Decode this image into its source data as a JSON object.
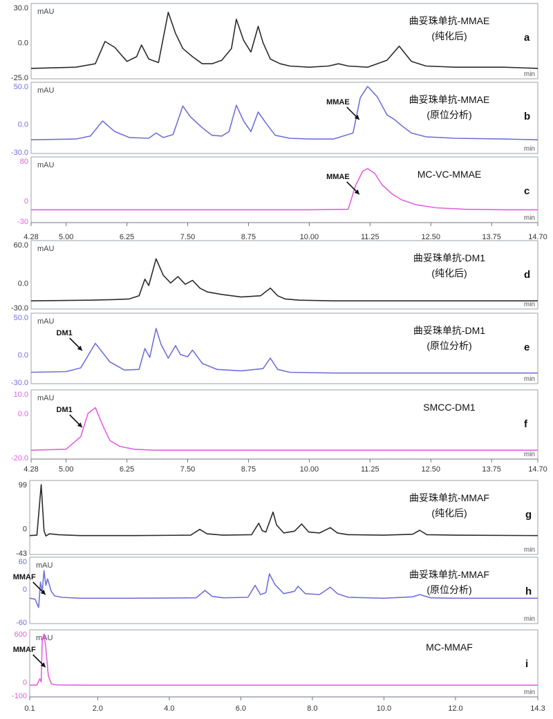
{
  "chart_data": [
    {
      "panel_group": "MMAE/MC-VC-MMAE",
      "x_axis": {
        "type": "linear",
        "range": [
          4.28,
          14.7
        ],
        "ticks": [
          4.28,
          5.0,
          6.25,
          7.5,
          8.75,
          10.0,
          11.25,
          12.5,
          13.75,
          14.7
        ],
        "tick_labels": [
          "4.28",
          "5.00",
          "6.25",
          "7.50",
          "8.75",
          "10.00",
          "11.25",
          "12.50",
          "13.75",
          "14.70"
        ]
      },
      "panels": [
        {
          "id": "a",
          "type": "line",
          "y_unit": "mAU",
          "x_unit": "min",
          "ylim": [
            -25.0,
            30.0
          ],
          "yticks": [
            "30.0",
            "0.0",
            "-25.0"
          ],
          "color": "#2a2a2a",
          "title_lines": [
            "曲妥珠单抗-MMAE",
            "(纯化后)"
          ],
          "letter": "a",
          "x": [
            4.28,
            5.2,
            5.6,
            5.8,
            6.0,
            6.25,
            6.45,
            6.55,
            6.7,
            6.9,
            7.1,
            7.25,
            7.4,
            7.6,
            7.8,
            8.0,
            8.2,
            8.4,
            8.5,
            8.65,
            8.8,
            8.95,
            9.05,
            9.2,
            9.4,
            9.6,
            10.0,
            10.4,
            10.6,
            10.8,
            11.2,
            11.6,
            11.85,
            12.1,
            12.4,
            13.0,
            14.0,
            14.7
          ],
          "y": [
            -22,
            -21,
            -18,
            1,
            -4,
            -16,
            -12,
            -2,
            -14,
            -17,
            26,
            8,
            -5,
            -12,
            -18,
            -18,
            -15,
            -5,
            20,
            2,
            -8,
            14,
            0,
            -14,
            -18,
            -20,
            -21,
            -20,
            -18,
            -20,
            -21,
            -15,
            -3,
            -16,
            -20,
            -21,
            -21,
            -22
          ]
        },
        {
          "id": "b",
          "type": "line",
          "y_unit": "mAU",
          "x_unit": "min",
          "ylim": [
            -30.0,
            50.0
          ],
          "yticks": [
            "50.0",
            "0.0",
            "-30.0"
          ],
          "color": "#6f6fdc",
          "title_lines": [
            "曲妥珠单抗-MMAE",
            "(原位分析)"
          ],
          "letter": "b",
          "annotation": "MMAE",
          "annotation_x": 11.0,
          "x": [
            4.28,
            5.2,
            5.5,
            5.75,
            6.0,
            6.3,
            6.7,
            6.85,
            7.0,
            7.2,
            7.4,
            7.55,
            7.8,
            8.0,
            8.2,
            8.35,
            8.5,
            8.65,
            8.8,
            8.95,
            9.1,
            9.3,
            9.6,
            10.0,
            10.5,
            10.9,
            11.05,
            11.2,
            11.4,
            11.6,
            11.75,
            11.9,
            12.1,
            12.4,
            13.0,
            14.0,
            14.7
          ],
          "y": [
            -21,
            -20,
            -16,
            4,
            -10,
            -18,
            -19,
            -12,
            -18,
            -14,
            24,
            10,
            -5,
            -15,
            -16,
            -10,
            25,
            4,
            -10,
            16,
            2,
            -15,
            -19,
            -20,
            -20,
            -12,
            35,
            50,
            36,
            12,
            6,
            -2,
            -12,
            -17,
            -19,
            -20,
            -21
          ]
        },
        {
          "id": "c",
          "type": "line",
          "y_unit": "mAU",
          "x_unit": "min",
          "ylim": [
            -30,
            80
          ],
          "yticks": [
            "80",
            "0",
            "-30"
          ],
          "color": "#e060e0",
          "title_lines": [
            "MC-VC-MMAE"
          ],
          "letter": "c",
          "annotation": "MMAE",
          "annotation_x": 11.0,
          "x": [
            4.28,
            6.0,
            8.0,
            10.0,
            10.8,
            10.95,
            11.1,
            11.2,
            11.35,
            11.5,
            11.7,
            11.9,
            12.2,
            12.6,
            13.2,
            14.0,
            14.7
          ],
          "y": [
            -18,
            -18,
            -18,
            -18,
            -17,
            30,
            60,
            65,
            55,
            32,
            14,
            2,
            -8,
            -14,
            -17,
            -18,
            -18
          ]
        }
      ]
    },
    {
      "panel_group": "DM1/SMCC-DM1",
      "x_axis": {
        "type": "linear",
        "range": [
          4.28,
          14.7
        ],
        "ticks": [
          4.28,
          5.0,
          6.25,
          7.5,
          8.75,
          10.0,
          11.25,
          12.5,
          13.75,
          14.7
        ],
        "tick_labels": [
          "4.28",
          "5.00",
          "6.25",
          "7.50",
          "8.75",
          "10.00",
          "11.25",
          "12.50",
          "13.75",
          "14.70"
        ]
      },
      "panels": [
        {
          "id": "d",
          "type": "line",
          "y_unit": "mAU",
          "x_unit": "min",
          "ylim": [
            -30.0,
            60.0
          ],
          "yticks": [
            "60.0",
            "0.0",
            "-30.0"
          ],
          "color": "#2a2a2a",
          "title_lines": [
            "曲妥珠单抗-DM1",
            "(纯化后)"
          ],
          "letter": "d",
          "x": [
            4.28,
            5.5,
            6.0,
            6.3,
            6.5,
            6.62,
            6.7,
            6.85,
            7.0,
            7.15,
            7.3,
            7.45,
            7.6,
            7.75,
            7.9,
            8.2,
            8.6,
            9.0,
            9.2,
            9.35,
            9.5,
            9.8,
            10.5,
            12,
            14.7
          ],
          "y": [
            -28,
            -27,
            -26,
            -25,
            -20,
            6,
            -4,
            38,
            12,
            0,
            10,
            -2,
            4,
            -8,
            -14,
            -18,
            -22,
            -20,
            -8,
            -20,
            -25,
            -27,
            -28,
            -28,
            -28
          ]
        },
        {
          "id": "e",
          "type": "line",
          "y_unit": "mAU",
          "x_unit": "min",
          "ylim": [
            -30.0,
            50.0
          ],
          "yticks": [
            "50.0",
            "0.0",
            "-30.0"
          ],
          "color": "#6f6fdc",
          "title_lines": [
            "曲妥珠单抗-DM1",
            "(原位分析)"
          ],
          "letter": "e",
          "annotation": "DM1",
          "annotation_x": 5.3,
          "x": [
            4.28,
            5.0,
            5.3,
            5.6,
            5.9,
            6.2,
            6.5,
            6.62,
            6.72,
            6.85,
            6.95,
            7.1,
            7.25,
            7.35,
            7.5,
            7.6,
            7.8,
            8.1,
            8.6,
            9.05,
            9.2,
            9.35,
            9.6,
            10.5,
            12,
            14.7
          ],
          "y": [
            -24,
            -23,
            -18,
            15,
            -10,
            -21,
            -20,
            8,
            -4,
            35,
            14,
            -5,
            12,
            0,
            -3,
            6,
            -12,
            -20,
            -22,
            -19,
            -5,
            -20,
            -24,
            -25,
            -25,
            -25
          ]
        },
        {
          "id": "f",
          "type": "line",
          "y_unit": "mAU",
          "x_unit": "min",
          "ylim": [
            -20.0,
            10.0
          ],
          "yticks": [
            "10.0",
            "0.0",
            "-20.0"
          ],
          "color": "#e060e0",
          "title_lines": [
            "SMCC-DM1"
          ],
          "letter": "f",
          "annotation": "DM1",
          "annotation_x": 5.3,
          "x": [
            4.28,
            5.0,
            5.3,
            5.45,
            5.6,
            5.75,
            5.9,
            6.1,
            6.4,
            6.8,
            8,
            10,
            12,
            14.7
          ],
          "y": [
            -19,
            -18.5,
            -12,
            0,
            3,
            -6,
            -14,
            -17,
            -18.5,
            -19,
            -19,
            -19,
            -19,
            -19
          ]
        }
      ]
    },
    {
      "panel_group": "MMAF/MC-MMAF",
      "x_axis": {
        "type": "linear",
        "range": [
          0.1,
          14.3
        ],
        "ticks": [
          0.1,
          2.0,
          4.0,
          6.0,
          8.0,
          10.0,
          12.0,
          14.3
        ],
        "tick_labels": [
          "0.1",
          "2.0",
          "4.0",
          "6.0",
          "8.0",
          "10.0",
          "12.0",
          "14.3"
        ]
      },
      "panels": [
        {
          "id": "g",
          "type": "line",
          "y_unit": "",
          "x_unit": "min",
          "ylim": [
            -43,
            99
          ],
          "yticks": [
            "99",
            "0",
            "-43"
          ],
          "color": "#2a2a2a",
          "title_lines": [
            "曲妥珠单抗-MMAF",
            "(纯化后)"
          ],
          "letter": "g",
          "x": [
            0.1,
            0.3,
            0.42,
            0.5,
            0.55,
            0.65,
            0.9,
            1.5,
            3.0,
            4.6,
            4.85,
            5.05,
            5.5,
            6.3,
            6.5,
            6.6,
            6.7,
            6.9,
            7.0,
            7.2,
            7.5,
            7.7,
            7.9,
            8.2,
            8.5,
            8.7,
            9.0,
            10,
            10.8,
            11,
            11.2,
            12,
            14.3
          ],
          "y": [
            -16,
            -15,
            99,
            -5,
            -17,
            -12,
            -14,
            -16,
            -16,
            -15,
            -2,
            -12,
            -15,
            -14,
            12,
            -5,
            -8,
            37,
            8,
            -10,
            -6,
            10,
            -8,
            -10,
            2,
            -10,
            -14,
            -15,
            -13,
            -4,
            -14,
            -15,
            -16
          ]
        },
        {
          "id": "h",
          "type": "line",
          "y_unit": "mAU",
          "x_unit": "min",
          "ylim": [
            -60,
            60
          ],
          "yticks": [
            "60",
            "0",
            "-60"
          ],
          "color": "#6f6fdc",
          "title_lines": [
            "曲妥珠单抗-MMAF",
            "(原位分析)"
          ],
          "letter": "h",
          "annotation": "MMAF",
          "annotation_x": 0.5,
          "x": [
            0.1,
            0.25,
            0.35,
            0.4,
            0.45,
            0.5,
            0.55,
            0.6,
            0.7,
            0.8,
            1.0,
            1.5,
            3,
            4.75,
            5.0,
            5.2,
            5.5,
            6.2,
            6.4,
            6.55,
            6.7,
            6.8,
            6.95,
            7.2,
            7.5,
            7.6,
            7.8,
            8.2,
            8.5,
            8.7,
            9.0,
            10,
            10.8,
            11.0,
            11.3,
            12,
            14.3
          ],
          "y": [
            -20,
            -22,
            -40,
            15,
            -5,
            40,
            8,
            22,
            -5,
            -15,
            -18,
            -20,
            -20,
            -19,
            -3,
            -16,
            -19,
            -18,
            8,
            -12,
            -8,
            33,
            10,
            -10,
            -5,
            6,
            -10,
            -12,
            4,
            -10,
            -18,
            -20,
            -17,
            -12,
            -19,
            -20,
            -20
          ]
        },
        {
          "id": "i",
          "type": "line",
          "y_unit": "mAU",
          "x_unit": "min",
          "ylim": [
            -100,
            600
          ],
          "yticks": [
            "600",
            "0",
            "-100"
          ],
          "color": "#e060e0",
          "title_lines": [
            "MC-MMAF"
          ],
          "letter": "i",
          "annotation": "MMAF",
          "annotation_x": 0.5,
          "x": [
            0.1,
            0.3,
            0.38,
            0.42,
            0.45,
            0.5,
            0.55,
            0.62,
            0.7,
            0.8,
            1.0,
            2,
            6,
            10,
            14.3
          ],
          "y": [
            -40,
            -38,
            40,
            0,
            520,
            600,
            420,
            80,
            -20,
            -35,
            -38,
            -40,
            -40,
            -40,
            -40
          ]
        }
      ]
    }
  ]
}
